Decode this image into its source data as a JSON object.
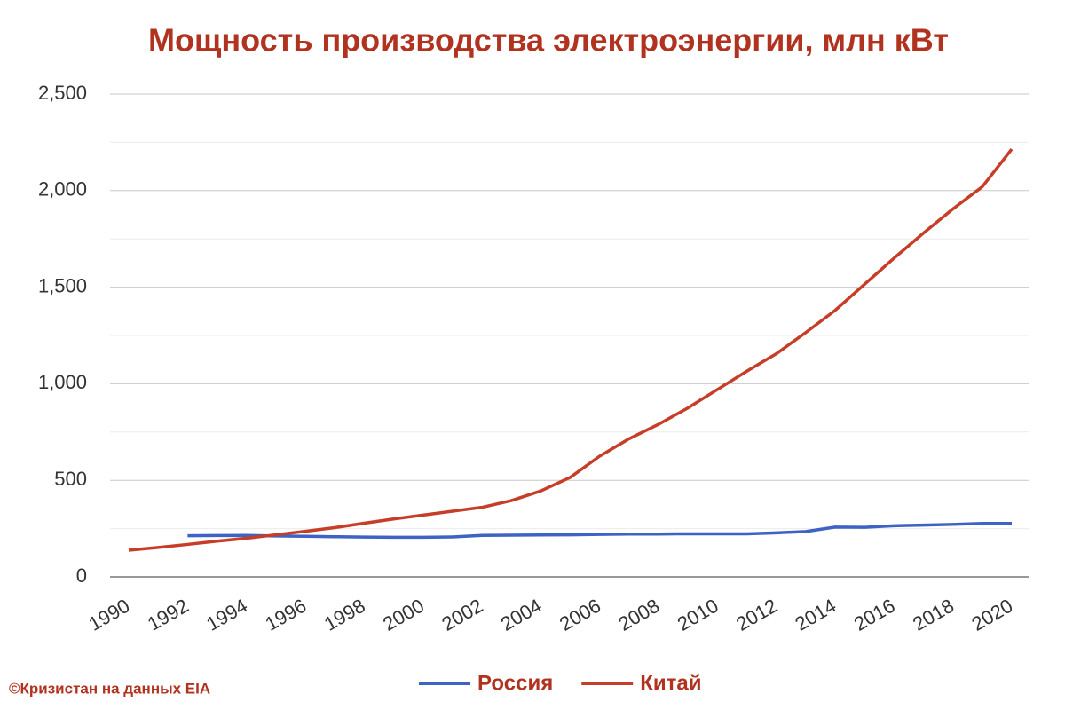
{
  "chart_data": {
    "type": "line",
    "title": "Мощность производства электроэнергии, млн кВт",
    "source": "©Кризистан на данных EIA",
    "x": [
      1990,
      1991,
      1992,
      1993,
      1994,
      1995,
      1996,
      1997,
      1998,
      1999,
      2000,
      2001,
      2002,
      2003,
      2004,
      2005,
      2006,
      2007,
      2008,
      2009,
      2010,
      2011,
      2012,
      2013,
      2014,
      2015,
      2016,
      2017,
      2018,
      2019,
      2020
    ],
    "series": [
      {
        "name": "Россия",
        "color": "#3f63c4",
        "values": [
          null,
          null,
          213,
          214,
          215,
          212,
          210,
          208,
          206,
          205,
          205,
          207,
          215,
          216,
          217,
          218,
          220,
          222,
          222,
          223,
          223,
          223,
          228,
          235,
          258,
          257,
          265,
          268,
          272,
          277,
          277
        ]
      },
      {
        "name": "Китай",
        "color": "#c63d28",
        "values": [
          138,
          152,
          168,
          185,
          200,
          218,
          236,
          255,
          278,
          300,
          320,
          340,
          360,
          395,
          445,
          515,
          625,
          715,
          790,
          875,
          970,
          1065,
          1155,
          1265,
          1380,
          1515,
          1650,
          1780,
          1905,
          2020,
          2215
        ]
      }
    ],
    "xlim": [
      1990,
      2020
    ],
    "xticks": [
      1990,
      1992,
      1994,
      1996,
      1998,
      2000,
      2002,
      2004,
      2006,
      2008,
      2010,
      2012,
      2014,
      2016,
      2018,
      2020
    ],
    "ylim": [
      0,
      2500
    ],
    "yticks": [
      0,
      {
        "value": 500,
        "label": "500"
      },
      {
        "value": 1000,
        "label": "1,000"
      },
      {
        "value": 1500,
        "label": "1,500"
      },
      {
        "value": 2000,
        "label": "2,000"
      },
      {
        "value": 2500,
        "label": "2,500"
      }
    ],
    "minor_yticks": [
      250,
      750,
      1250,
      1750,
      2250
    ],
    "grid": true,
    "legend": "bottom"
  }
}
